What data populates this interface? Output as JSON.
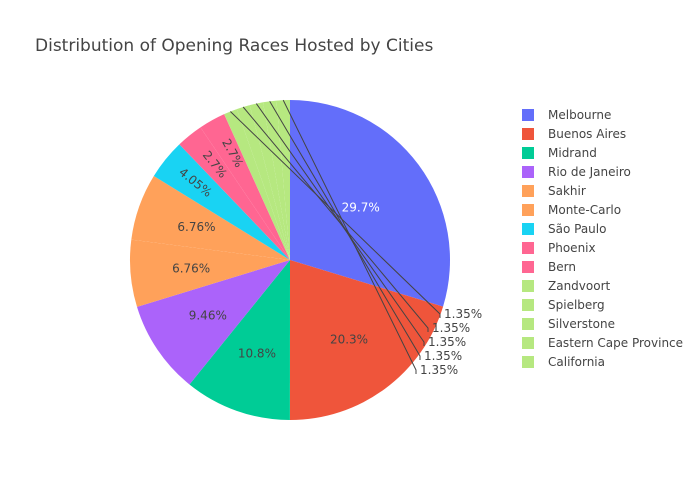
{
  "chart_data": {
    "type": "pie",
    "title": "Distribution of Opening Races Hosted by Cities",
    "legend_position": "right",
    "labels": [
      "Melbourne",
      "Buenos Aires",
      "Midrand",
      "Rio de Janeiro",
      "Sakhir",
      "Monte-Carlo",
      "São Paulo",
      "Phoenix",
      "Bern",
      "Zandvoort",
      "Spielberg",
      "Silverstone",
      "Eastern Cape Province",
      "California"
    ],
    "percent_labels": [
      "29.7%",
      "20.3%",
      "10.8%",
      "9.46%",
      "6.76%",
      "6.76%",
      "4.05%",
      "2.7%",
      "2.7%",
      "1.35%",
      "1.35%",
      "1.35%",
      "1.35%",
      "1.35%"
    ],
    "values": [
      29.7,
      20.3,
      10.8,
      9.46,
      6.76,
      6.76,
      4.05,
      2.7,
      2.7,
      1.35,
      1.35,
      1.35,
      1.35,
      1.35
    ],
    "colors": [
      "#636efa",
      "#ef553b",
      "#00cc96",
      "#ab63fa",
      "#ffa15a",
      "#ffa15a",
      "#19d3f3",
      "#ff6692",
      "#ff6692",
      "#b6e880",
      "#b6e880",
      "#b6e880",
      "#b6e880",
      "#b6e880"
    ]
  }
}
